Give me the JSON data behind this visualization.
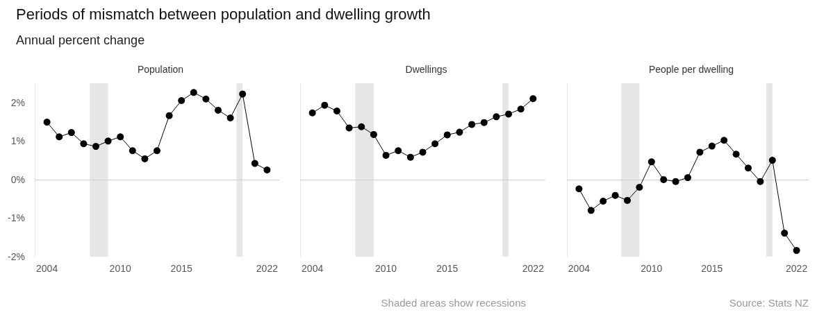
{
  "chart_data": [
    {
      "type": "line",
      "title": "Periods of mismatch between population and dwelling growth",
      "subtitle": "Annual percent change",
      "x": [
        2004,
        2005,
        2006,
        2007,
        2008,
        2009,
        2010,
        2011,
        2012,
        2013,
        2014,
        2015,
        2016,
        2017,
        2018,
        2019,
        2020,
        2021,
        2022
      ],
      "series": [
        {
          "name": "Population",
          "color": "#000000",
          "values": [
            1.49,
            1.11,
            1.22,
            0.93,
            0.86,
            1.0,
            1.11,
            0.75,
            0.54,
            0.75,
            1.66,
            2.05,
            2.26,
            2.09,
            1.8,
            1.6,
            2.22,
            0.42,
            0.25
          ]
        }
      ],
      "xlim": [
        2003,
        2023
      ],
      "xticks": [
        2004,
        2010,
        2015,
        2022
      ],
      "ylim": [
        -2,
        2.5
      ],
      "yticks": [
        {
          "value": -2,
          "label": "-2%"
        },
        {
          "value": -1,
          "label": "-1%"
        },
        {
          "value": 0,
          "label": "0%"
        },
        {
          "value": 1,
          "label": "1%"
        },
        {
          "value": 2,
          "label": "2%"
        }
      ],
      "bands": [
        {
          "axis": "x",
          "from": 2007.5,
          "to": 2009,
          "color": "#e6e6e6"
        },
        {
          "axis": "x",
          "from": 2019.5,
          "to": 2020,
          "color": "#e6e6e6"
        }
      ],
      "ref_lines": [
        {
          "axis": "y",
          "value": 0,
          "color": "#cccccc"
        }
      ],
      "grid": false,
      "legend": false,
      "marker": "circle",
      "line_style": "solid"
    },
    {
      "type": "line",
      "x": [
        2004,
        2005,
        2006,
        2007,
        2008,
        2009,
        2010,
        2011,
        2012,
        2013,
        2014,
        2015,
        2016,
        2017,
        2018,
        2019,
        2020,
        2021,
        2022
      ],
      "series": [
        {
          "name": "Dwellings",
          "color": "#000000",
          "values": [
            1.73,
            1.93,
            1.78,
            1.34,
            1.37,
            1.17,
            0.63,
            0.75,
            0.58,
            0.71,
            0.93,
            1.16,
            1.23,
            1.43,
            1.48,
            1.63,
            1.7,
            1.83,
            2.1
          ]
        }
      ],
      "xlim": [
        2003,
        2023
      ],
      "xticks": [
        2004,
        2010,
        2015,
        2022
      ],
      "ylim": [
        -2,
        2.5
      ],
      "tick_labels": "x",
      "bands": [
        {
          "axis": "x",
          "from": 2007.5,
          "to": 2009,
          "color": "#e6e6e6"
        },
        {
          "axis": "x",
          "from": 2019.5,
          "to": 2020,
          "color": "#e6e6e6"
        }
      ],
      "ref_lines": [
        {
          "axis": "y",
          "value": 0,
          "color": "#cccccc"
        }
      ],
      "annotations": [
        "Shaded areas show recessions"
      ],
      "grid": false,
      "legend": false,
      "marker": "circle",
      "line_style": "solid"
    },
    {
      "type": "line",
      "x": [
        2004,
        2005,
        2006,
        2007,
        2008,
        2009,
        2010,
        2011,
        2012,
        2013,
        2014,
        2015,
        2016,
        2017,
        2018,
        2019,
        2020,
        2021,
        2022
      ],
      "series": [
        {
          "name": "People per dwelling",
          "color": "#000000",
          "values": [
            -0.24,
            -0.8,
            -0.56,
            -0.41,
            -0.54,
            -0.2,
            0.46,
            0.0,
            -0.05,
            0.05,
            0.71,
            0.87,
            1.02,
            0.66,
            0.3,
            -0.05,
            0.5,
            -1.39,
            -1.84
          ]
        }
      ],
      "xlim": [
        2003,
        2023
      ],
      "xticks": [
        2004,
        2010,
        2015,
        2022
      ],
      "ylim": [
        -2,
        2.5
      ],
      "tick_labels": "x",
      "bands": [
        {
          "axis": "x",
          "from": 2007.5,
          "to": 2009,
          "color": "#e6e6e6"
        },
        {
          "axis": "x",
          "from": 2019.5,
          "to": 2020,
          "color": "#e6e6e6"
        }
      ],
      "ref_lines": [
        {
          "axis": "y",
          "value": 0,
          "color": "#cccccc"
        }
      ],
      "annotations": [
        "Source: Stats NZ"
      ],
      "grid": false,
      "legend": false,
      "marker": "circle",
      "line_style": "solid"
    }
  ]
}
